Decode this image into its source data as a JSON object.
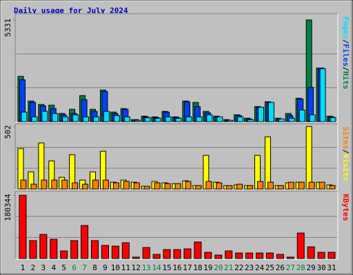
{
  "chart_data": [
    {
      "type": "bar",
      "title": "Daily usage for July 2024",
      "ylim": [
        0,
        5331
      ],
      "yticks": [
        5331
      ],
      "legend_separator": "/",
      "series": [
        {
          "name": "Hits",
          "color": "#008040",
          "values": [
            2377,
            1081,
            900,
            864,
            432,
            648,
            1369,
            648,
            1657,
            504,
            684,
            108,
            288,
            252,
            540,
            252,
            1081,
            1009,
            540,
            288,
            108,
            360,
            180,
            792,
            1045,
            180,
            432,
            1225,
            5331,
            2810,
            288
          ]
        },
        {
          "name": "Files",
          "color": "#0040ff",
          "values": [
            2197,
            1009,
            828,
            684,
            360,
            432,
            1153,
            540,
            1585,
            432,
            648,
            108,
            252,
            216,
            504,
            216,
            1045,
            792,
            468,
            252,
            72,
            324,
            144,
            756,
            1009,
            144,
            324,
            1189,
            1801,
            2810,
            252
          ]
        },
        {
          "name": "Pages",
          "color": "#00e0ff",
          "values": [
            504,
            252,
            540,
            432,
            252,
            360,
            252,
            252,
            540,
            324,
            252,
            72,
            216,
            180,
            252,
            180,
            252,
            252,
            360,
            252,
            72,
            252,
            108,
            756,
            1009,
            144,
            180,
            612,
            360,
            2774,
            216
          ]
        }
      ]
    },
    {
      "type": "bar",
      "ylim": [
        0,
        502
      ],
      "yticks": [
        502
      ],
      "legend_separator": "/",
      "series": [
        {
          "name": "Visits",
          "color": "#ffff00",
          "values": [
            325,
            138,
            370,
            226,
            94,
            276,
            72,
            138,
            303,
            55,
            72,
            55,
            22,
            61,
            50,
            44,
            66,
            28,
            270,
            55,
            28,
            33,
            28,
            270,
            419,
            28,
            50,
            55,
            502,
            55,
            33
          ]
        },
        {
          "name": "Sites",
          "color": "#ff8000",
          "values": [
            72,
            39,
            72,
            72,
            72,
            50,
            39,
            72,
            72,
            50,
            61,
            50,
            22,
            50,
            44,
            44,
            61,
            28,
            61,
            50,
            28,
            39,
            28,
            61,
            55,
            28,
            55,
            55,
            55,
            55,
            28
          ]
        }
      ]
    },
    {
      "type": "bar",
      "ylim": [
        0,
        180344
      ],
      "yticks": [
        180344
      ],
      "series": [
        {
          "name": "KBytes",
          "color": "#ff0000",
          "values": [
            180344,
            50960,
            68600,
            54880,
            21560,
            50960,
            94080,
            50960,
            37240,
            35280,
            45080,
            3920,
            31360,
            11760,
            25480,
            25480,
            27440,
            47040,
            17640,
            9800,
            21560,
            15680,
            15680,
            15680,
            15680,
            11760,
            3920,
            72520,
            33320,
            17640,
            17640
          ]
        }
      ],
      "categories": [
        "1",
        "2",
        "3",
        "4",
        "5",
        "6",
        "7",
        "8",
        "9",
        "10",
        "11",
        "12",
        "13",
        "14",
        "15",
        "16",
        "17",
        "18",
        "19",
        "20",
        "21",
        "22",
        "23",
        "24",
        "25",
        "26",
        "27",
        "28",
        "29",
        "30",
        "31"
      ],
      "category_colors": [
        "#000000",
        "#000000",
        "#000000",
        "#000000",
        "#000000",
        "#008040",
        "#008040",
        "#000000",
        "#000000",
        "#000000",
        "#000000",
        "#000000",
        "#008040",
        "#008040",
        "#000000",
        "#000000",
        "#000000",
        "#000000",
        "#000000",
        "#008040",
        "#008040",
        "#000000",
        "#000000",
        "#000000",
        "#000000",
        "#000000",
        "#008040",
        "#008040",
        "#000000",
        "#000000",
        "#000000"
      ]
    }
  ]
}
